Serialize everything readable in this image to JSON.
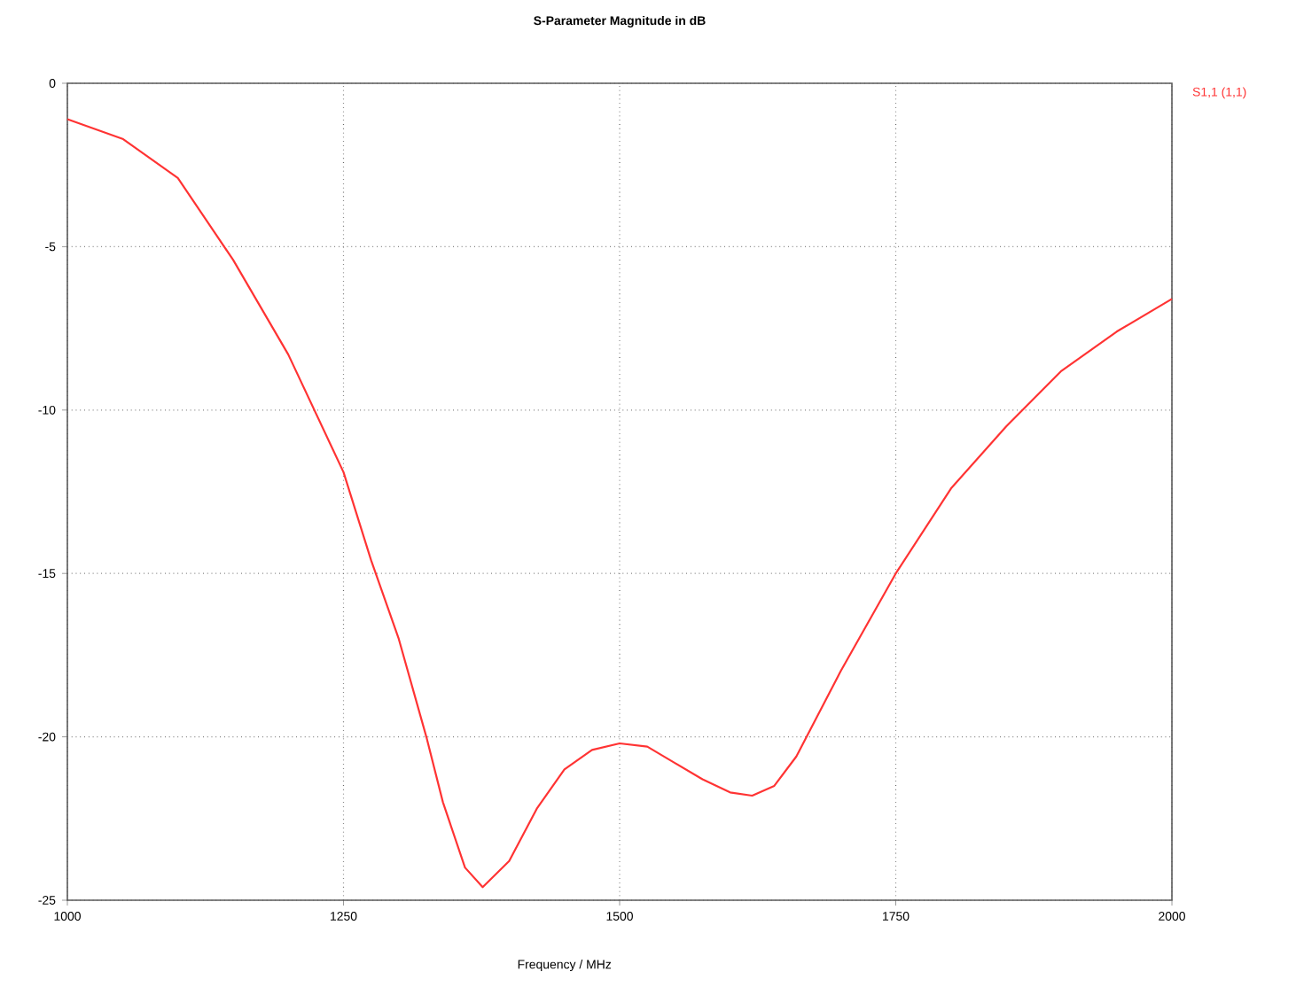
{
  "chart_data": {
    "type": "line",
    "title": "S-Parameter Magnitude in dB",
    "xlabel": "Frequency / MHz",
    "xlim": [
      1000,
      2000
    ],
    "xticks": [
      1000,
      1250,
      1500,
      1750,
      2000
    ],
    "ylim": [
      -25,
      0
    ],
    "yticks": [
      -25,
      -20,
      -15,
      -10,
      -5,
      0
    ],
    "grid": true,
    "legend": "top right",
    "line_style": "solid",
    "x": [
      1000,
      1050,
      1100,
      1150,
      1200,
      1250,
      1275,
      1300,
      1325,
      1340,
      1360,
      1376,
      1400,
      1425,
      1450,
      1475,
      1500,
      1525,
      1550,
      1575,
      1600,
      1620,
      1640,
      1660,
      1700,
      1750,
      1800,
      1850,
      1900,
      1950,
      2000
    ],
    "series": [
      {
        "name": "S1,1 (1,1)",
        "color": "#ff3333",
        "values": [
          -1.1,
          -1.7,
          -2.9,
          -5.4,
          -8.3,
          -11.9,
          -14.6,
          -17,
          -20,
          -22,
          -24,
          -24.6,
          -23.8,
          -22.2,
          -21,
          -20.4,
          -20.2,
          -20.3,
          -20.8,
          -21.3,
          -21.7,
          -21.8,
          -21.5,
          -20.6,
          -18,
          -15,
          -12.4,
          -10.5,
          -8.8,
          -7.6,
          -6.6
        ]
      }
    ]
  }
}
